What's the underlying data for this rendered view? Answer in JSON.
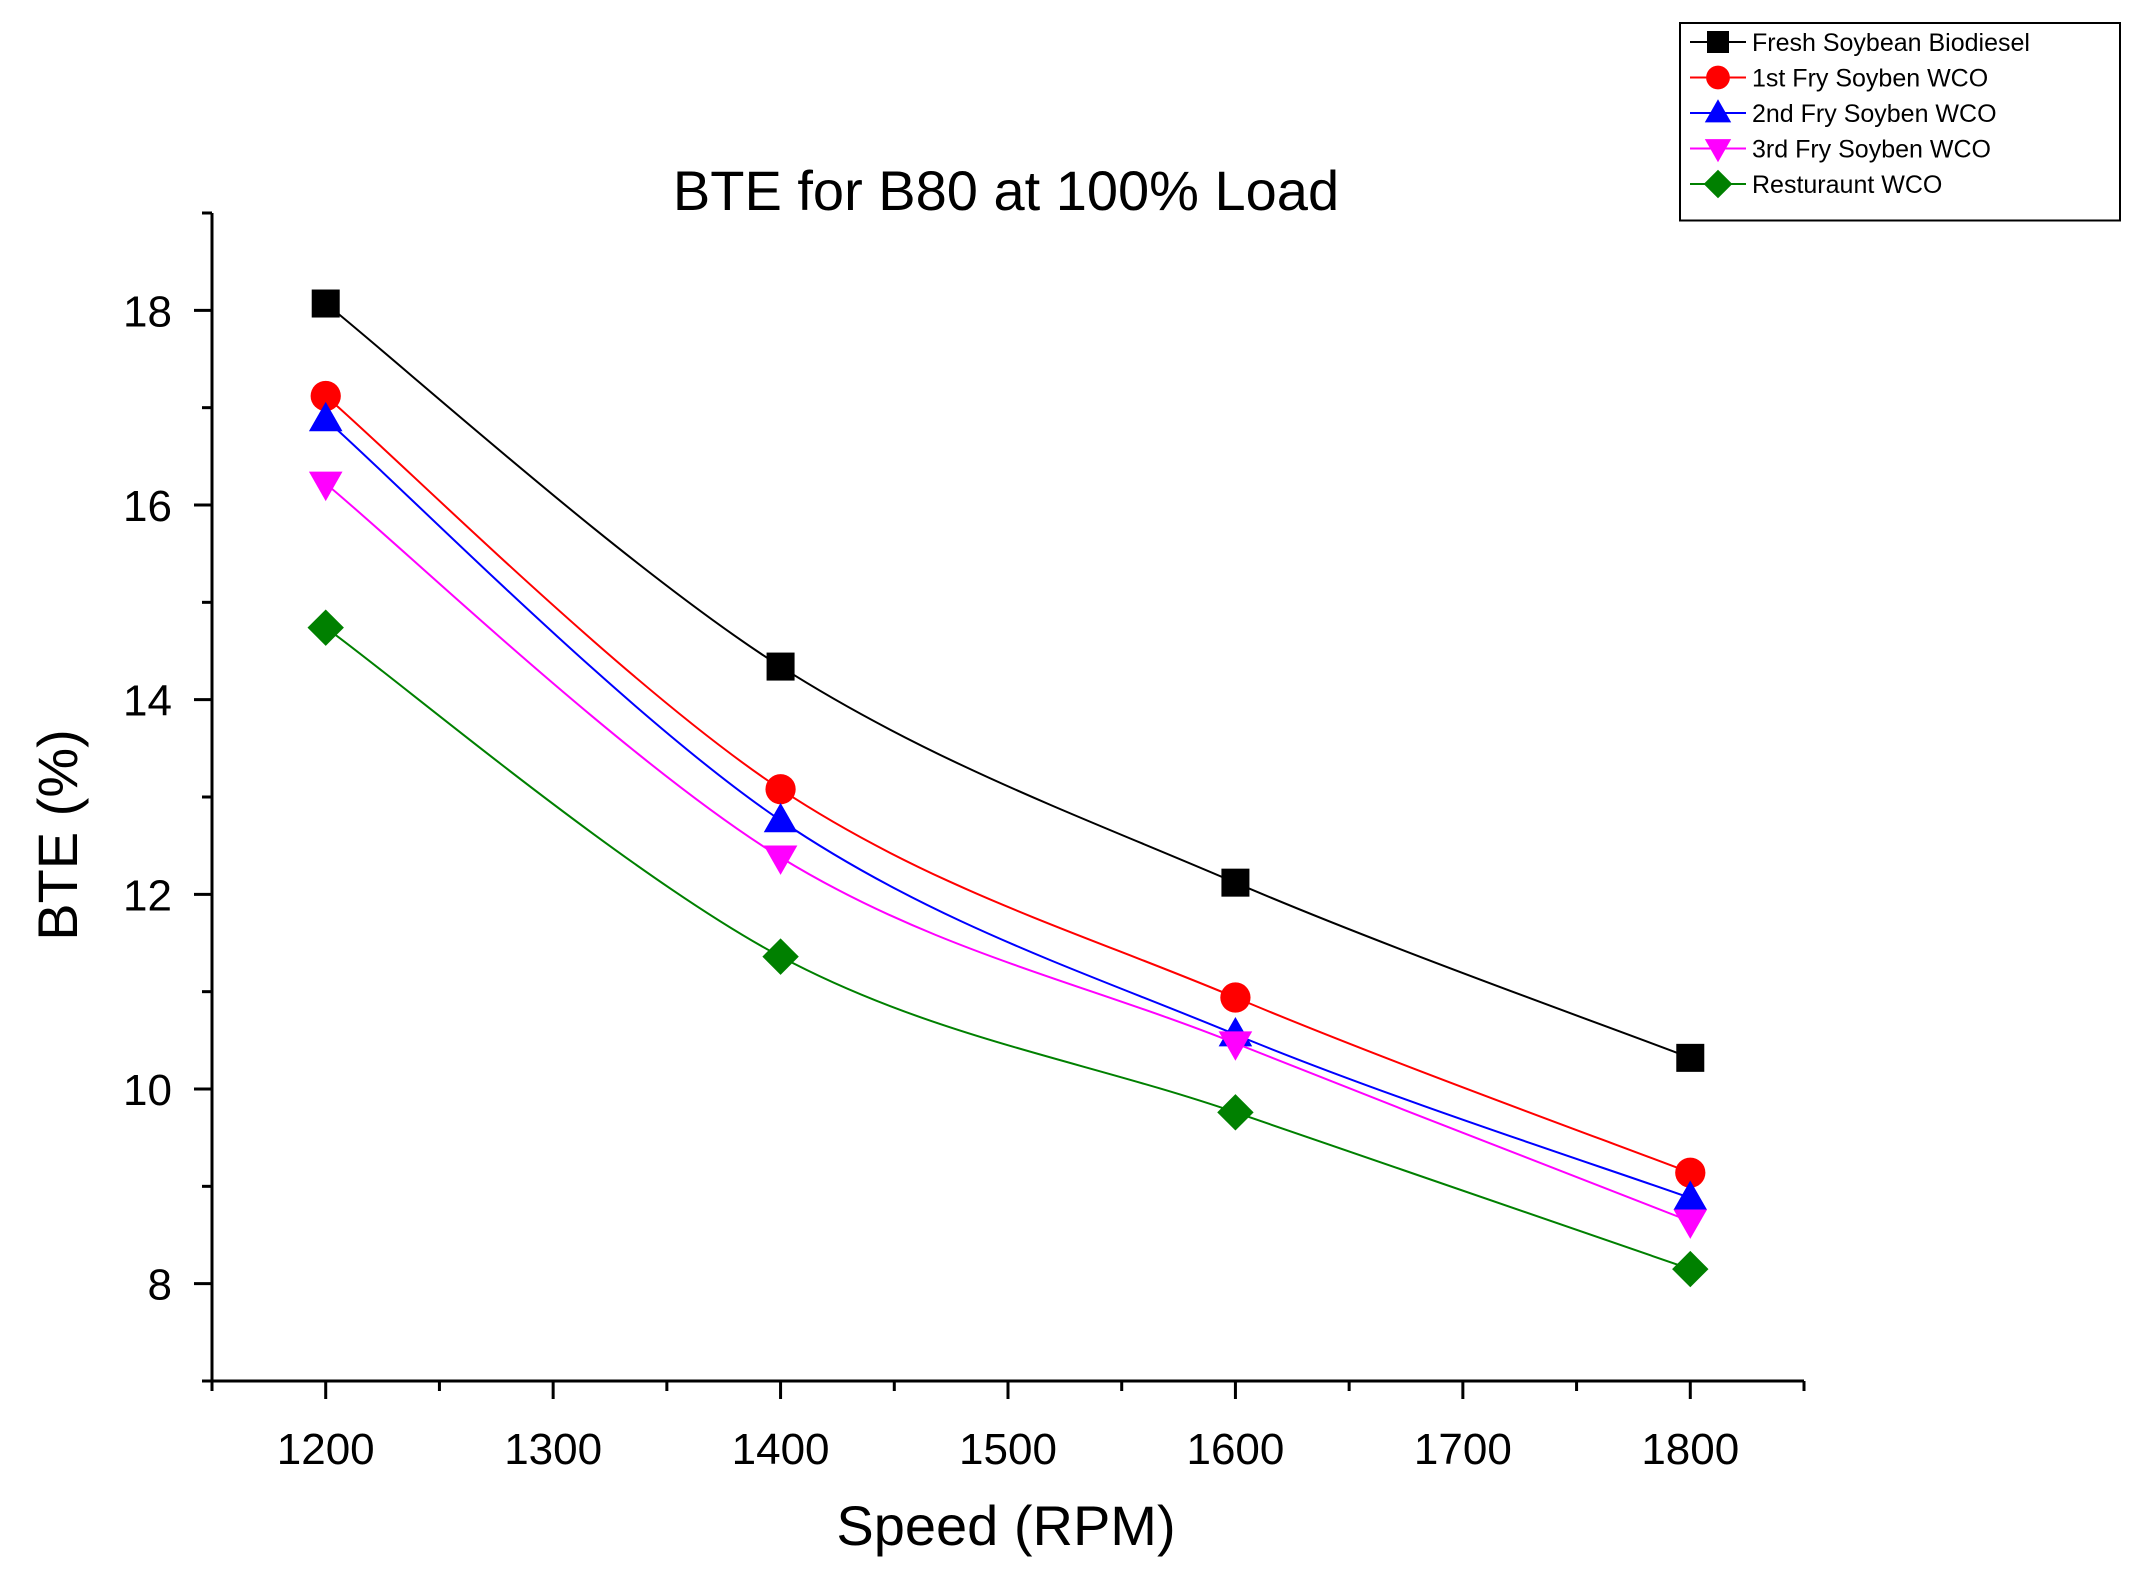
{
  "chart_data": {
    "type": "line",
    "title": "BTE for B80 at 100% Load",
    "xlabel": "Speed (RPM)",
    "ylabel": "BTE (%)",
    "xlim": [
      1150,
      1850
    ],
    "ylim": [
      7,
      19
    ],
    "x_ticks": [
      1200,
      1300,
      1400,
      1500,
      1600,
      1700,
      1800
    ],
    "x_tick_labels": [
      "1200",
      "1300",
      "1400",
      "1500",
      "1600",
      "1700",
      "1800"
    ],
    "y_ticks": [
      8,
      10,
      12,
      14,
      16,
      18
    ],
    "y_tick_labels": [
      "8",
      "10",
      "12",
      "14",
      "16",
      "18"
    ],
    "x": [
      1200,
      1400,
      1600,
      1800
    ],
    "grid": false,
    "legend_position": "top-right",
    "series": [
      {
        "name": "Fresh Soybean Biodiesel",
        "values": [
          18.07,
          14.34,
          12.12,
          10.32
        ],
        "color": "#000000",
        "marker": "square"
      },
      {
        "name": "1st Fry Soyben WCO",
        "values": [
          17.12,
          13.08,
          10.94,
          9.14
        ],
        "color": "#ff0000",
        "marker": "circle"
      },
      {
        "name": "2nd Fry Soyben WCO",
        "values": [
          16.88,
          12.76,
          10.56,
          8.88
        ],
        "color": "#0000ff",
        "marker": "triangle-up"
      },
      {
        "name": "3rd Fry Soyben WCO",
        "values": [
          16.22,
          12.38,
          10.47,
          8.64
        ],
        "color": "#ff00ff",
        "marker": "triangle-down"
      },
      {
        "name": "Resturaunt WCO",
        "values": [
          14.74,
          11.36,
          9.76,
          8.15
        ],
        "color": "#008000",
        "marker": "diamond"
      }
    ]
  }
}
